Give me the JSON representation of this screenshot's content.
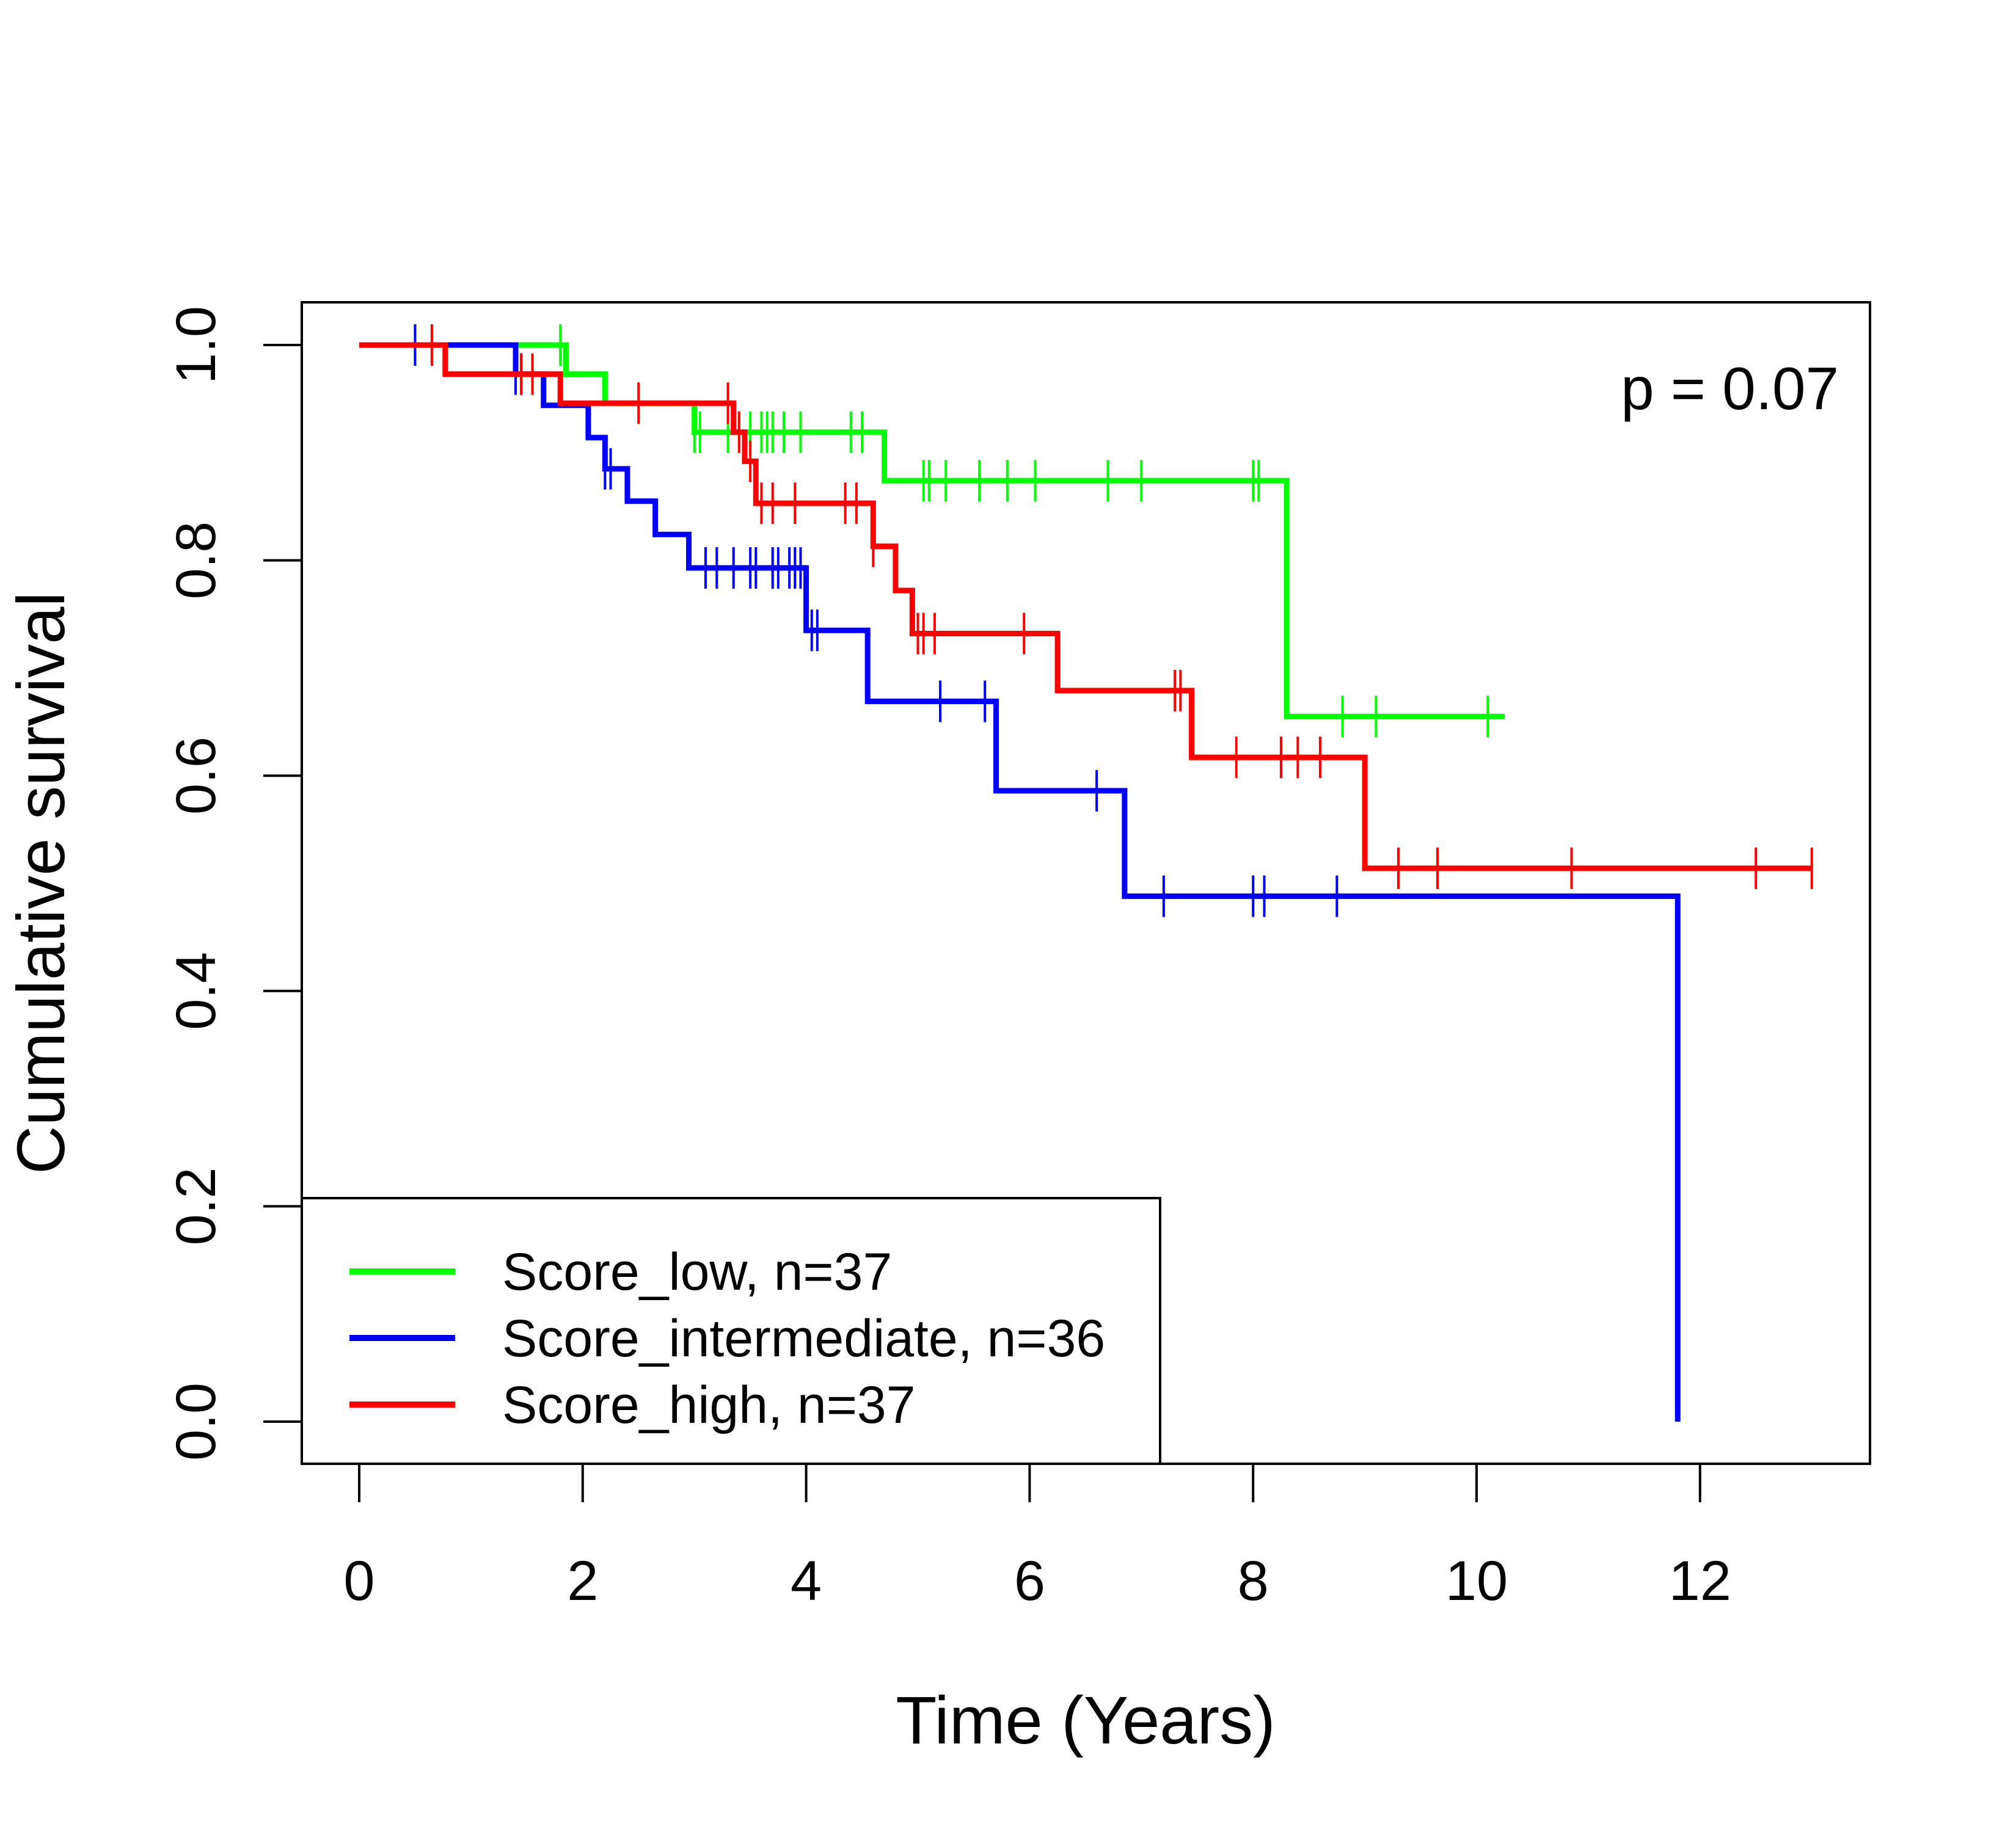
{
  "chart_data": {
    "type": "line",
    "subtype": "kaplan-meier-step",
    "title": "",
    "xlabel": "Time (Years)",
    "ylabel": "Cumulative survival",
    "xlim": [
      0,
      13
    ],
    "ylim": [
      0,
      1
    ],
    "x_ticks": [
      0,
      2,
      4,
      6,
      8,
      10,
      12
    ],
    "x_tick_labels": [
      "0",
      "2",
      "4",
      "6",
      "8",
      "10",
      "12"
    ],
    "y_ticks": [
      0,
      0.2,
      0.4,
      0.6,
      0.8,
      1
    ],
    "y_tick_labels": [
      "0.0",
      "0.2",
      "0.4",
      "0.6",
      "0.8",
      "1.0"
    ],
    "grid": false,
    "legend_position": "bottom-left",
    "annotation": "p = 0.07",
    "series": [
      {
        "name": "Score_low, n=37",
        "color": "#00ff00",
        "steps": [
          [
            0,
            1.0
          ],
          [
            1.85,
            0.973
          ],
          [
            2.2,
            0.946
          ],
          [
            3.0,
            0.919
          ],
          [
            4.7,
            0.874
          ],
          [
            8.3,
            0.655
          ],
          [
            10.25,
            0.655
          ]
        ],
        "censor_times": [
          1.8,
          3.0,
          3.05,
          3.3,
          3.4,
          3.5,
          3.6,
          3.65,
          3.7,
          3.8,
          3.95,
          4.4,
          4.5,
          5.05,
          5.1,
          5.25,
          5.55,
          5.8,
          6.05,
          6.7,
          7.0,
          8.0,
          8.05,
          8.8,
          9.1,
          10.1
        ]
      },
      {
        "name": "Score_intermediate, n=36",
        "color": "#0000ff",
        "steps": [
          [
            0,
            1.0
          ],
          [
            1.4,
            0.973
          ],
          [
            1.65,
            0.944
          ],
          [
            2.05,
            0.914
          ],
          [
            2.2,
            0.885
          ],
          [
            2.4,
            0.855
          ],
          [
            2.65,
            0.824
          ],
          [
            2.95,
            0.793
          ],
          [
            4.0,
            0.735
          ],
          [
            4.55,
            0.669
          ],
          [
            5.7,
            0.586
          ],
          [
            6.85,
            0.488
          ],
          [
            11.8,
            0.0
          ]
        ],
        "censor_times": [
          0.5,
          1.4,
          1.45,
          2.2,
          2.25,
          3.1,
          3.2,
          3.35,
          3.5,
          3.55,
          3.7,
          3.75,
          3.85,
          3.9,
          3.95,
          4.05,
          4.1,
          5.2,
          5.6,
          6.6,
          7.2,
          8.0,
          8.1,
          8.75
        ]
      },
      {
        "name": "Score_high, n=37",
        "color": "#ff0000",
        "steps": [
          [
            0,
            1.0
          ],
          [
            0.77,
            0.973
          ],
          [
            1.8,
            0.946
          ],
          [
            3.35,
            0.919
          ],
          [
            3.45,
            0.892
          ],
          [
            3.55,
            0.853
          ],
          [
            4.6,
            0.813
          ],
          [
            4.8,
            0.772
          ],
          [
            4.95,
            0.732
          ],
          [
            6.25,
            0.679
          ],
          [
            7.45,
            0.617
          ],
          [
            9.0,
            0.514
          ],
          [
            13.0,
            0.514
          ]
        ],
        "censor_times": [
          0.65,
          1.45,
          1.55,
          2.5,
          3.3,
          3.4,
          3.5,
          3.6,
          3.7,
          3.9,
          4.35,
          4.45,
          4.6,
          5.0,
          5.05,
          5.15,
          5.95,
          7.3,
          7.35,
          7.85,
          8.25,
          8.4,
          8.6,
          9.3,
          9.65,
          10.85,
          12.5,
          13.0
        ]
      }
    ]
  }
}
